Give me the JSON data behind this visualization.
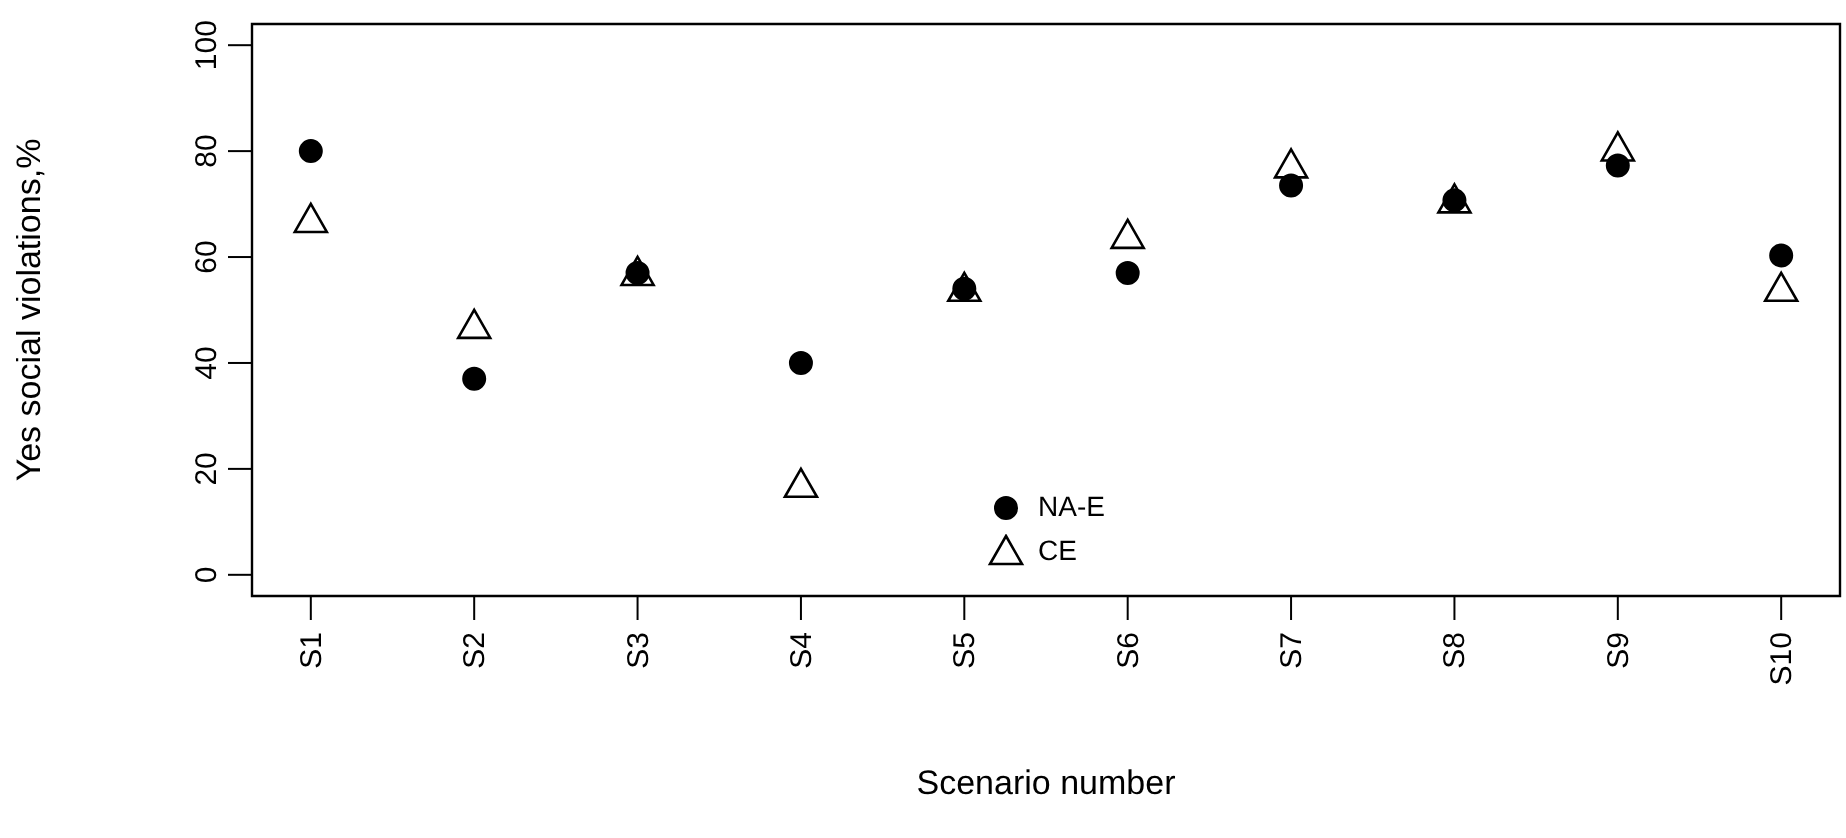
{
  "chart_data": {
    "type": "scatter",
    "xlabel": "Scenario number",
    "ylabel": "Yes social violations,%",
    "categories": [
      "S1",
      "S2",
      "S3",
      "S4",
      "S5",
      "S6",
      "S7",
      "S8",
      "S9",
      "S10"
    ],
    "series": [
      {
        "name": "NA-E",
        "color": "#000000",
        "marker": "circle",
        "values": [
          80,
          37,
          57,
          40,
          54,
          57,
          73.5,
          70.7,
          77.3,
          60.3
        ]
      },
      {
        "name": "CE",
        "color": "#000000",
        "marker": "triangle",
        "values": [
          67,
          47,
          57,
          17,
          54,
          64,
          77.3,
          70.7,
          80.5,
          54
        ]
      }
    ],
    "ylim": [
      -4,
      104
    ],
    "yticks": [
      0,
      20,
      40,
      60,
      80,
      100
    ],
    "grid": false,
    "legend": "bottom"
  }
}
